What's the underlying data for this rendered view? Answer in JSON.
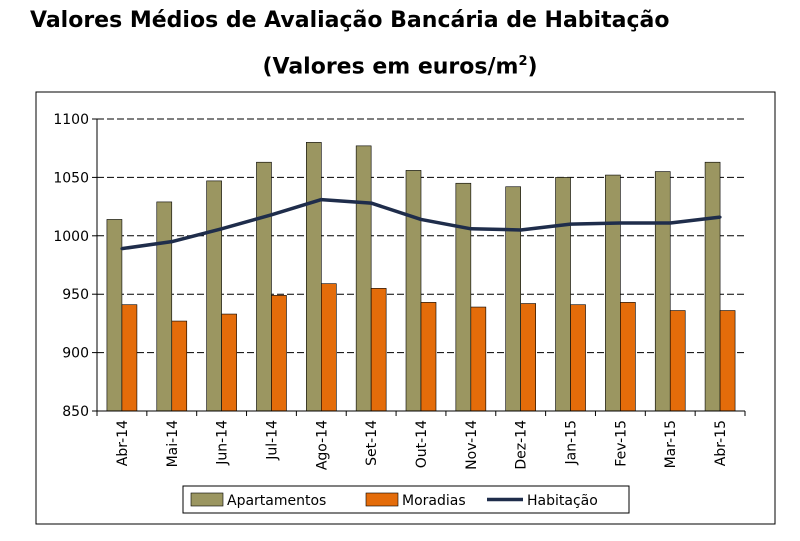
{
  "chart_data": {
    "type": "bar",
    "title": "Valores Médios de Avaliação Bancária de Habitação",
    "subtitle_main": "(Valores em euros/m",
    "subtitle_sup": "2",
    "subtitle_end": ")",
    "xlabel": "",
    "ylabel": "",
    "ylim": [
      850,
      1100
    ],
    "yticks": [
      850,
      900,
      950,
      1000,
      1050,
      1100
    ],
    "grid": true,
    "legend_position": "bottom",
    "categories": [
      "Abr-14",
      "Mai-14",
      "Jun-14",
      "Jul-14",
      "Ago-14",
      "Set-14",
      "Out-14",
      "Nov-14",
      "Dez-14",
      "Jan-15",
      "Fev-15",
      "Mar-15",
      "Abr-15"
    ],
    "series": [
      {
        "name": "Apartamentos",
        "type": "bar",
        "color": "#9b9661",
        "values": [
          1014,
          1029,
          1047,
          1063,
          1080,
          1077,
          1056,
          1045,
          1042,
          1050,
          1052,
          1055,
          1063
        ]
      },
      {
        "name": "Moradias",
        "type": "bar",
        "color": "#e46c0a",
        "values": [
          941,
          927,
          933,
          949,
          959,
          955,
          943,
          939,
          942,
          941,
          943,
          936,
          936
        ]
      },
      {
        "name": "Habitação",
        "type": "line",
        "color": "#1f2d4b",
        "values": [
          989,
          995,
          1006,
          1018,
          1031,
          1028,
          1014,
          1006,
          1005,
          1010,
          1011,
          1011,
          1016
        ]
      }
    ]
  }
}
